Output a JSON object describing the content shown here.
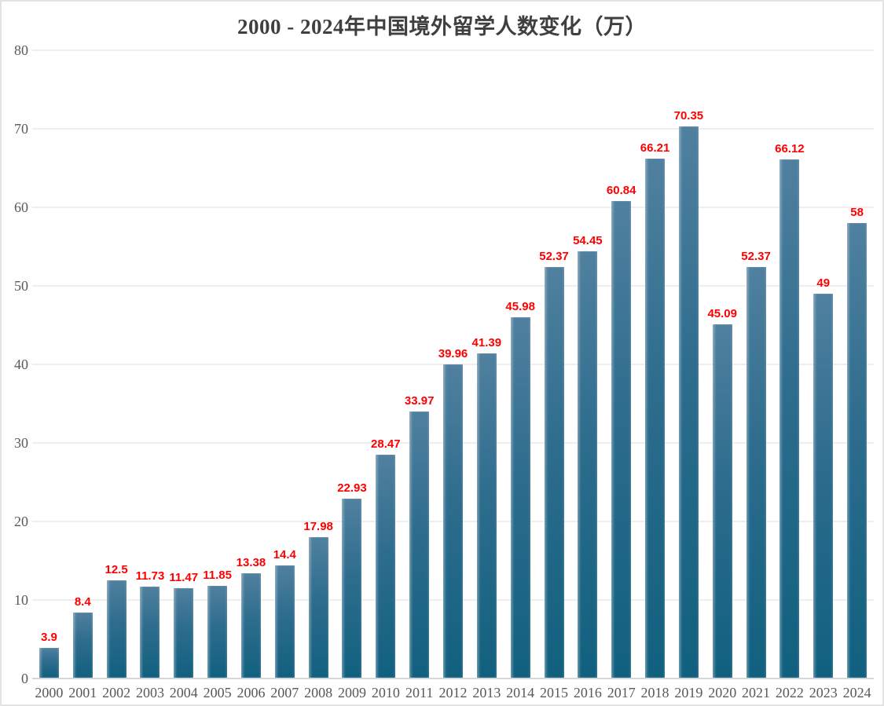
{
  "chart_data": {
    "type": "bar",
    "title": "2000 - 2024年中国境外留学人数变化（万）",
    "categories": [
      "2000",
      "2001",
      "2002",
      "2003",
      "2004",
      "2005",
      "2006",
      "2007",
      "2008",
      "2009",
      "2010",
      "2011",
      "2012",
      "2013",
      "2014",
      "2015",
      "2016",
      "2017",
      "2018",
      "2019",
      "2020",
      "2021",
      "2022",
      "2023",
      "2024"
    ],
    "values": [
      3.9,
      8.4,
      12.5,
      11.73,
      11.47,
      11.85,
      13.38,
      14.4,
      17.98,
      22.93,
      28.47,
      33.97,
      39.96,
      41.39,
      45.98,
      52.37,
      54.45,
      60.84,
      66.21,
      70.35,
      45.09,
      52.37,
      66.12,
      49,
      58
    ],
    "value_labels": [
      "3.9",
      "8.4",
      "12.5",
      "11.73",
      "11.47",
      "11.85",
      "13.38",
      "14.4",
      "17.98",
      "22.93",
      "28.47",
      "33.97",
      "39.96",
      "41.39",
      "45.98",
      "52.37",
      "54.45",
      "60.84",
      "66.21",
      "70.35",
      "45.09",
      "52.37",
      "66.12",
      "49",
      "58"
    ],
    "xlabel": "",
    "ylabel": "",
    "ylim": [
      0,
      80
    ],
    "yticks": [
      0,
      10,
      20,
      30,
      40,
      50,
      60,
      70,
      80
    ],
    "grid": "horizontal-only",
    "legend": "none",
    "colors": {
      "bar_gradient_top": "#50809f",
      "bar_gradient_mid": "#2d6c8d",
      "bar_gradient_bottom": "#11607f",
      "value_label": "#ff0000",
      "axis_text": "#595959",
      "title_text": "#3f3f3f",
      "gridline": "#eeeeee",
      "axis_line": "#d6d6d6",
      "border": "#e3e3e3",
      "background": "#ffffff"
    }
  }
}
